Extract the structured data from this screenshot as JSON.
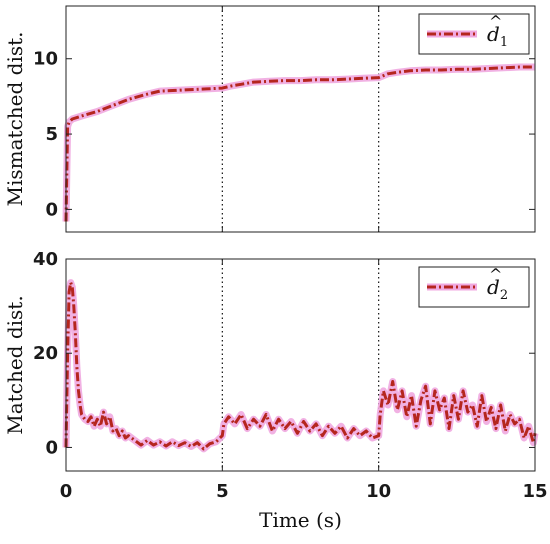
{
  "chart_data": [
    {
      "type": "line",
      "ylabel": "Mismatched dist.",
      "xlabel": "",
      "xlim": [
        0,
        15
      ],
      "ylim": [
        -1.5,
        13.5
      ],
      "xticks": [
        "0",
        "5",
        "10",
        "15"
      ],
      "yticks": [
        0,
        5,
        10
      ],
      "ytick_labels": [
        "0",
        "5",
        "10"
      ],
      "vlines": [
        5,
        10
      ],
      "legend": {
        "position": "top-right",
        "entries": [
          {
            "base": "d",
            "hat": "^",
            "sub": "1"
          }
        ]
      },
      "series": [
        {
          "name": "d̂1",
          "color": "#b5261e",
          "glow": "#f0a8e0",
          "x": [
            0,
            0.05,
            0.1,
            0.2,
            0.5,
            1,
            1.5,
            2,
            2.5,
            3,
            3.5,
            4,
            4.5,
            5,
            5.3,
            5.6,
            6,
            6.5,
            7,
            7.5,
            8,
            8.5,
            9,
            9.5,
            10,
            10.3,
            10.6,
            11,
            11.5,
            12,
            12.5,
            13,
            13.5,
            14,
            14.5,
            15
          ],
          "y": [
            -0.8,
            5.5,
            5.8,
            6.0,
            6.2,
            6.5,
            6.9,
            7.3,
            7.6,
            7.85,
            7.9,
            7.95,
            8.0,
            8.05,
            8.2,
            8.3,
            8.45,
            8.5,
            8.55,
            8.55,
            8.6,
            8.6,
            8.65,
            8.7,
            8.75,
            9.0,
            9.1,
            9.2,
            9.25,
            9.25,
            9.3,
            9.3,
            9.35,
            9.4,
            9.45,
            9.45
          ]
        }
      ]
    },
    {
      "type": "line",
      "ylabel": "Matched dist.",
      "xlabel": "Time (s)",
      "xlim": [
        0,
        15
      ],
      "ylim": [
        -5,
        40
      ],
      "xticks": [
        "0",
        "5",
        "10",
        "15"
      ],
      "yticks": [
        0,
        20,
        40
      ],
      "ytick_labels": [
        "0",
        "20",
        "40"
      ],
      "vlines": [
        5,
        10
      ],
      "legend": {
        "position": "top-right",
        "entries": [
          {
            "base": "d",
            "hat": "^",
            "sub": "2"
          }
        ]
      },
      "series": [
        {
          "name": "d̂2",
          "color": "#b5261e",
          "glow": "#f0a8e0",
          "x": [
            0,
            0.05,
            0.1,
            0.15,
            0.2,
            0.25,
            0.3,
            0.35,
            0.4,
            0.45,
            0.5,
            0.6,
            0.7,
            0.8,
            0.9,
            1,
            1.1,
            1.2,
            1.3,
            1.4,
            1.5,
            1.6,
            1.7,
            1.8,
            1.9,
            2,
            2.2,
            2.4,
            2.6,
            2.8,
            3,
            3.2,
            3.4,
            3.6,
            3.8,
            4,
            4.2,
            4.4,
            4.6,
            4.8,
            5,
            5.05,
            5.2,
            5.4,
            5.6,
            5.8,
            6,
            6.2,
            6.4,
            6.6,
            6.8,
            7,
            7.2,
            7.4,
            7.6,
            7.8,
            8,
            8.2,
            8.4,
            8.6,
            8.8,
            9,
            9.2,
            9.4,
            9.6,
            9.8,
            10,
            10.05,
            10.15,
            10.3,
            10.45,
            10.6,
            10.75,
            10.9,
            11.05,
            11.2,
            11.35,
            11.5,
            11.65,
            11.8,
            11.95,
            12.1,
            12.25,
            12.4,
            12.55,
            12.7,
            12.85,
            13,
            13.15,
            13.3,
            13.45,
            13.6,
            13.75,
            13.9,
            14.05,
            14.2,
            14.35,
            14.5,
            14.65,
            14.8,
            14.95,
            15
          ],
          "y": [
            0,
            20,
            33,
            35,
            34,
            30,
            24,
            17,
            12,
            9,
            7,
            6,
            5.5,
            6.5,
            4.5,
            6,
            4.5,
            7.5,
            5,
            6.5,
            3.5,
            4,
            2.5,
            3.5,
            2,
            2.5,
            1.5,
            0.5,
            1.5,
            0.5,
            1.2,
            0.3,
            1.2,
            0.4,
            1,
            0.2,
            1,
            -0.3,
            0.8,
            1.2,
            2.5,
            5,
            6.5,
            5,
            7,
            4,
            6,
            4.5,
            7,
            3.5,
            6,
            4,
            5.5,
            3,
            5.5,
            3.5,
            5,
            2.5,
            4.5,
            3,
            4.5,
            2,
            4,
            2.5,
            3.5,
            2,
            2.5,
            7,
            12,
            9,
            14,
            8,
            12,
            6.5,
            11,
            4.5,
            10,
            13,
            5,
            12,
            8,
            10.5,
            4,
            11,
            6,
            12,
            7.5,
            9,
            4.5,
            11,
            5.5,
            8.5,
            4,
            9,
            3.5,
            7,
            5,
            6,
            2,
            4.5,
            1,
            3
          ]
        }
      ]
    }
  ]
}
